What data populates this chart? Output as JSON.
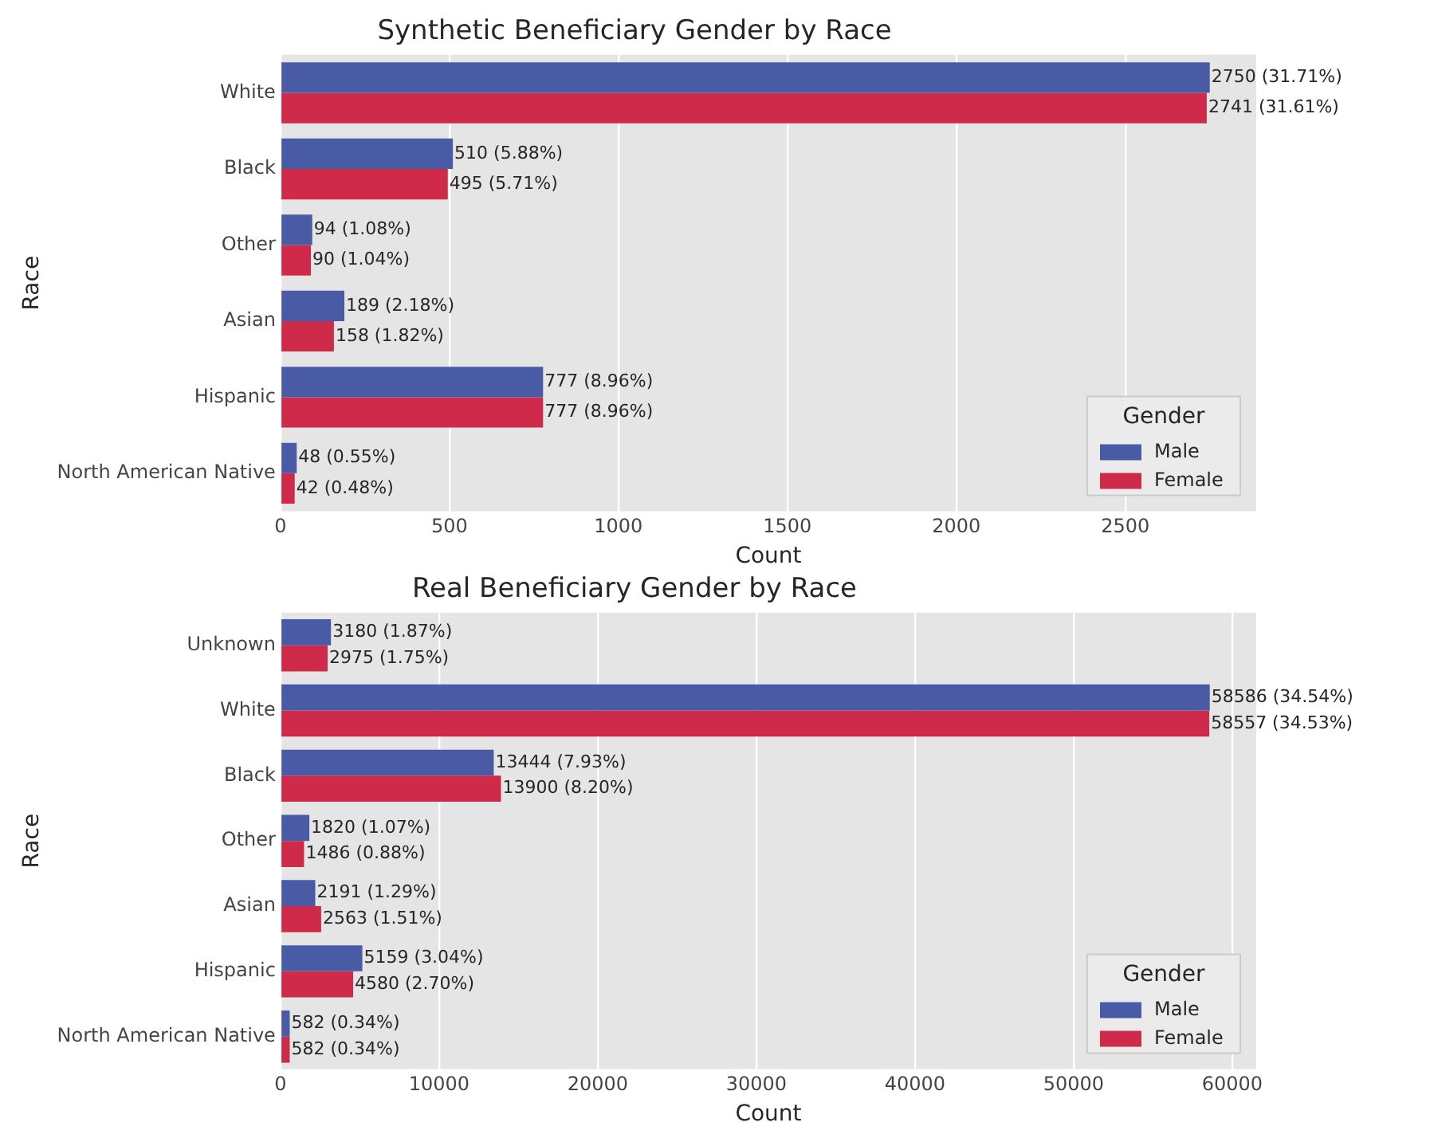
{
  "chart_data": [
    {
      "type": "bar",
      "orientation": "horizontal",
      "title": "Synthetic Beneficiary Gender by Race",
      "xlabel": "Count",
      "ylabel": "Race",
      "legend_title": "Gender",
      "legend": "bottom right",
      "grid": "x",
      "categories": [
        "White",
        "Black",
        "Other",
        "Asian",
        "Hispanic",
        "North American Native"
      ],
      "xlim": [
        0,
        2887.5
      ],
      "xticks": [
        0,
        500,
        1000,
        1500,
        2000,
        2500
      ],
      "series": [
        {
          "name": "Male",
          "color": "#4a5ba6",
          "values": [
            2750,
            510,
            94,
            189,
            777,
            48
          ],
          "value_labels": [
            "2750 (31.71%)",
            "510 (5.88%)",
            "94 (1.08%)",
            "189 (2.18%)",
            "777 (8.96%)",
            "48 (0.55%)"
          ]
        },
        {
          "name": "Female",
          "color": "#cf2a4a",
          "values": [
            2741,
            495,
            90,
            158,
            777,
            42
          ],
          "value_labels": [
            "2741 (31.61%)",
            "495 (5.71%)",
            "90 (1.04%)",
            "158 (1.82%)",
            "777 (8.96%)",
            "42 (0.48%)"
          ]
        }
      ]
    },
    {
      "type": "bar",
      "orientation": "horizontal",
      "title": "Real Beneficiary Gender by Race",
      "xlabel": "Count",
      "ylabel": "Race",
      "legend_title": "Gender",
      "legend": "bottom right",
      "grid": "x",
      "categories": [
        "Unknown",
        "White",
        "Black",
        "Other",
        "Asian",
        "Hispanic",
        "North American Native"
      ],
      "xlim": [
        0,
        61515
      ],
      "xticks": [
        0,
        10000,
        20000,
        30000,
        40000,
        50000,
        60000
      ],
      "series": [
        {
          "name": "Male",
          "color": "#4a5ba6",
          "values": [
            3180,
            58586,
            13444,
            1820,
            2191,
            5159,
            582
          ],
          "value_labels": [
            "3180 (1.87%)",
            "58586 (34.54%)",
            "13444 (7.93%)",
            "1820 (1.07%)",
            "2191 (1.29%)",
            "5159 (3.04%)",
            "582 (0.34%)"
          ]
        },
        {
          "name": "Female",
          "color": "#cf2a4a",
          "values": [
            2975,
            58557,
            13900,
            1486,
            2563,
            4580,
            582
          ],
          "value_labels": [
            "2975 (1.75%)",
            "58557 (34.53%)",
            "13900 (8.20%)",
            "1486 (0.88%)",
            "2563 (1.51%)",
            "4580 (2.70%)",
            "582 (0.34%)"
          ]
        }
      ]
    }
  ]
}
